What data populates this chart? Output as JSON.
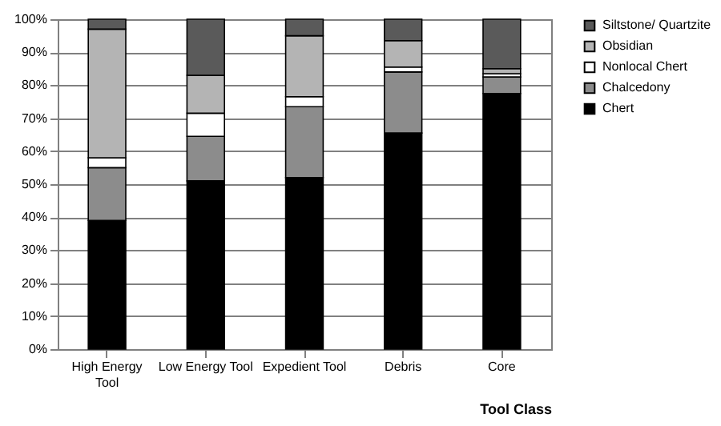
{
  "chart_data": {
    "type": "bar",
    "stacked": true,
    "xlabel": "Tool Class",
    "categories": [
      "High Energy Tool",
      "Low Energy Tool",
      "Expedient Tool",
      "Debris",
      "Core"
    ],
    "series": [
      {
        "name": "Chert",
        "color": "#000000",
        "values": [
          39,
          51,
          52,
          65.5,
          77.5
        ]
      },
      {
        "name": "Chalcedony",
        "color": "#8c8c8c",
        "values": [
          16,
          13.5,
          21.5,
          18.5,
          5
        ]
      },
      {
        "name": "Nonlocal Chert",
        "color": "#ffffff",
        "values": [
          3,
          7,
          3,
          1.5,
          1
        ]
      },
      {
        "name": "Obsidian",
        "color": "#b4b4b4",
        "values": [
          39,
          11.5,
          18.5,
          8,
          1.5
        ]
      },
      {
        "name": "Siltstone/ Quartzite",
        "color": "#5a5a5a",
        "values": [
          3,
          17,
          5,
          6.5,
          15
        ]
      }
    ],
    "ylim": [
      0,
      100
    ],
    "yticks": [
      {
        "value": 0,
        "label": "0%"
      },
      {
        "value": 10,
        "label": "10%"
      },
      {
        "value": 20,
        "label": "20%"
      },
      {
        "value": 30,
        "label": "30%"
      },
      {
        "value": 40,
        "label": "40%"
      },
      {
        "value": 50,
        "label": "50%"
      },
      {
        "value": 60,
        "label": "60%"
      },
      {
        "value": 70,
        "label": "70%"
      },
      {
        "value": 80,
        "label": "80%"
      },
      {
        "value": 90,
        "label": "90%"
      },
      {
        "value": 100,
        "label": "100%"
      }
    ],
    "grid": "y",
    "legend": "top right"
  }
}
